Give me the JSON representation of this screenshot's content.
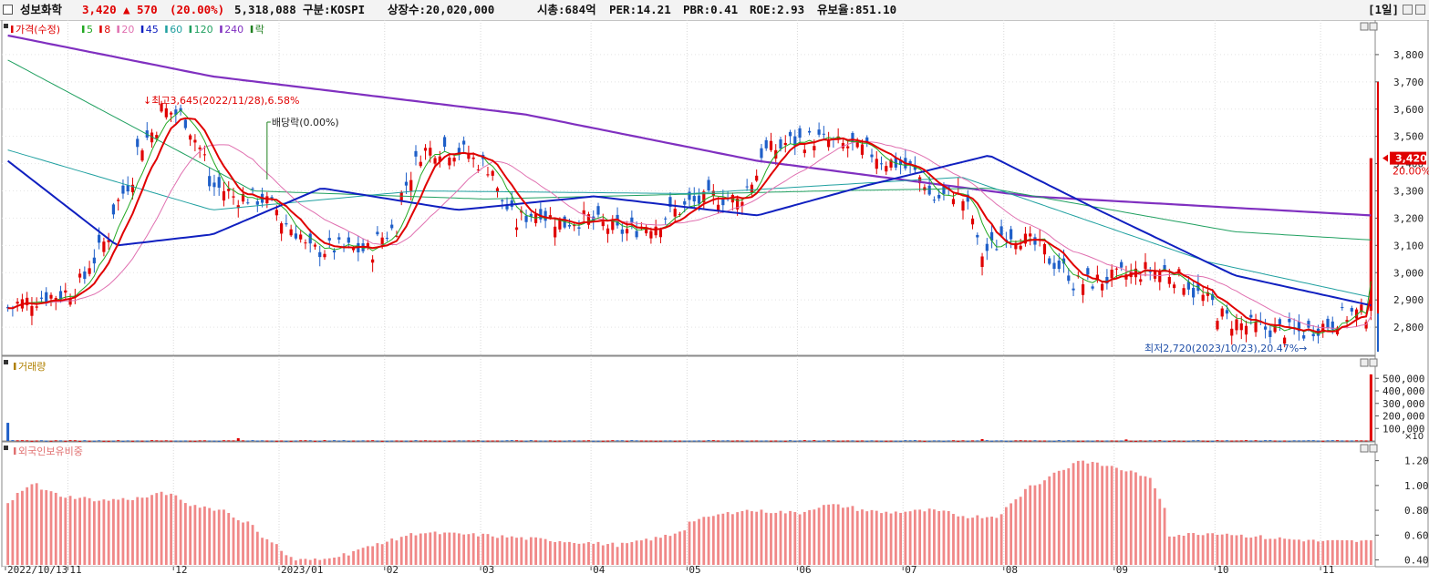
{
  "header": {
    "name": "성보화학",
    "price": "3,420",
    "change": "▲ 570",
    "change_pct": "(20.00%)",
    "volume": "5,318,088",
    "market": "구분:KOSPI",
    "shares": "상장수:20,020,000",
    "mcap": "시총:684억",
    "per": "PER:14.21",
    "pbr": "PBR:0.41",
    "roe": "ROE:2.93",
    "reserve": "유보율:851.10",
    "period": "[1일]",
    "up_color": "#e00000",
    "down_color": "#1f5fc8"
  },
  "chart_data": [
    {
      "type": "candlestick",
      "panel": "price",
      "legend": [
        {
          "label": "가격(수정)",
          "color": "#e00000"
        },
        {
          "label": "5",
          "color": "#22a822"
        },
        {
          "label": "8",
          "color": "#e00000"
        },
        {
          "label": "20",
          "color": "#e070b0"
        },
        {
          "label": "45",
          "color": "#1020c0"
        },
        {
          "label": "60",
          "color": "#20a0a0"
        },
        {
          "label": "120",
          "color": "#20a060"
        },
        {
          "label": "240",
          "color": "#8030c0"
        },
        {
          "label": "락",
          "color": "#208020"
        }
      ],
      "ylim": [
        2700,
        3900
      ],
      "yticks": [
        "3,800",
        "3,700",
        "3,600",
        "3,500",
        "3,400",
        "3,300",
        "3,200",
        "3,100",
        "3,000",
        "2,900",
        "2,800"
      ],
      "xticks": [
        "2022/10/13",
        "11",
        "12",
        "2023/01",
        "02",
        "03",
        "04",
        "05",
        "06",
        "07",
        "08",
        "09",
        "10",
        "11"
      ],
      "annotations": {
        "high": "최고3,645(2022/11/28),6.58%",
        "dividend": "배당락(0.00%)",
        "low": "최저2,720(2023/10/23),20.47%",
        "current_price": "3,420",
        "current_pct": "20.00%"
      },
      "anchors": [
        [
          "2022-10-13",
          2870
        ],
        [
          "2022-10-20",
          2900
        ],
        [
          "2022-11-01",
          2930
        ],
        [
          "2022-11-08",
          3050
        ],
        [
          "2022-11-14",
          3230
        ],
        [
          "2022-11-21",
          3450
        ],
        [
          "2022-11-28",
          3600
        ],
        [
          "2022-12-05",
          3560
        ],
        [
          "2022-12-12",
          3320
        ],
        [
          "2022-12-19",
          3280
        ],
        [
          "2022-12-27",
          3270
        ],
        [
          "2023-01-03",
          3180
        ],
        [
          "2023-01-10",
          3080
        ],
        [
          "2023-01-17",
          3090
        ],
        [
          "2023-01-27",
          3080
        ],
        [
          "2023-02-03",
          3170
        ],
        [
          "2023-02-10",
          3440
        ],
        [
          "2023-02-17",
          3460
        ],
        [
          "2023-02-24",
          3440
        ],
        [
          "2023-03-03",
          3380
        ],
        [
          "2023-03-10",
          3180
        ],
        [
          "2023-03-17",
          3230
        ],
        [
          "2023-03-24",
          3180
        ],
        [
          "2023-03-31",
          3200
        ],
        [
          "2023-04-10",
          3150
        ],
        [
          "2023-04-20",
          3180
        ],
        [
          "2023-04-28",
          3240
        ],
        [
          "2023-05-08",
          3280
        ],
        [
          "2023-05-15",
          3260
        ],
        [
          "2023-05-22",
          3440
        ],
        [
          "2023-05-30",
          3480
        ],
        [
          "2023-06-06",
          3490
        ],
        [
          "2023-06-13",
          3470
        ],
        [
          "2023-06-20",
          3450
        ],
        [
          "2023-06-27",
          3410
        ],
        [
          "2023-07-04",
          3380
        ],
        [
          "2023-07-11",
          3270
        ],
        [
          "2023-07-18",
          3300
        ],
        [
          "2023-07-25",
          3070
        ],
        [
          "2023-08-01",
          3150
        ],
        [
          "2023-08-08",
          3110
        ],
        [
          "2023-08-14",
          3050
        ],
        [
          "2023-08-21",
          2960
        ],
        [
          "2023-08-28",
          2970
        ],
        [
          "2023-09-04",
          2990
        ],
        [
          "2023-09-11",
          3010
        ],
        [
          "2023-09-18",
          3000
        ],
        [
          "2023-09-25",
          2930
        ],
        [
          "2023-10-05",
          2820
        ],
        [
          "2023-10-12",
          2800
        ],
        [
          "2023-10-19",
          2790
        ],
        [
          "2023-10-26",
          2780
        ],
        [
          "2023-11-02",
          2810
        ],
        [
          "2023-11-09",
          2850
        ],
        [
          "2023-11-14",
          2850
        ],
        [
          "2023-11-15",
          3420
        ]
      ],
      "ma240": [
        [
          3870,
          0
        ],
        [
          3720,
          0.15
        ],
        [
          3580,
          0.38
        ],
        [
          3410,
          0.55
        ],
        [
          3280,
          0.75
        ],
        [
          3210,
          1
        ]
      ],
      "ma120": [
        [
          3780,
          0
        ],
        [
          3300,
          0.18
        ],
        [
          3270,
          0.35
        ],
        [
          3300,
          0.6
        ],
        [
          3310,
          0.72
        ],
        [
          3150,
          0.9
        ],
        [
          3120,
          1
        ]
      ],
      "ma60": [
        [
          3450,
          0
        ],
        [
          3230,
          0.15
        ],
        [
          3300,
          0.3
        ],
        [
          3290,
          0.5
        ],
        [
          3350,
          0.7
        ],
        [
          3040,
          0.88
        ],
        [
          2910,
          1
        ]
      ],
      "ma45": [
        [
          3410,
          0
        ],
        [
          3100,
          0.08
        ],
        [
          3140,
          0.15
        ],
        [
          3310,
          0.23
        ],
        [
          3230,
          0.33
        ],
        [
          3280,
          0.43
        ],
        [
          3210,
          0.55
        ],
        [
          3320,
          0.63
        ],
        [
          3430,
          0.72
        ],
        [
          3230,
          0.8
        ],
        [
          2990,
          0.9
        ],
        [
          2880,
          1
        ]
      ]
    },
    {
      "type": "bar",
      "panel": "volume",
      "legend": [
        {
          "label": "거래량",
          "color": "#b08000"
        }
      ],
      "ylim": [
        0,
        560000
      ],
      "yticks": [
        "500,000",
        "400,000",
        "300,000",
        "200,000",
        "100,000"
      ],
      "unit": "×10",
      "spikes": [
        [
          "2022-10-13",
          145000
        ],
        [
          "2022-12-20",
          22000
        ],
        [
          "2023-07-25",
          15000
        ],
        [
          "2023-09-05",
          12000
        ],
        [
          "2023-11-15",
          531800
        ]
      ]
    },
    {
      "type": "bar",
      "panel": "foreign",
      "legend": [
        {
          "label": "외국인보유비중",
          "color": "#e07070"
        }
      ],
      "ylim": [
        0.36,
        1.3
      ],
      "yticks": [
        "1.20",
        "1.00",
        "0.80",
        "0.60",
        "0.40"
      ],
      "anchors": [
        [
          "2022-10-13",
          0.85
        ],
        [
          "2022-10-20",
          1.02
        ],
        [
          "2022-10-28",
          0.92
        ],
        [
          "2022-11-10",
          0.88
        ],
        [
          "2022-11-22",
          0.9
        ],
        [
          "2022-11-28",
          0.95
        ],
        [
          "2022-12-05",
          0.85
        ],
        [
          "2022-12-15",
          0.8
        ],
        [
          "2022-12-22",
          0.7
        ],
        [
          "2022-12-29",
          0.55
        ],
        [
          "2023-01-05",
          0.4
        ],
        [
          "2023-01-12",
          0.4
        ],
        [
          "2023-01-20",
          0.45
        ],
        [
          "2023-02-01",
          0.55
        ],
        [
          "2023-02-10",
          0.62
        ],
        [
          "2023-03-01",
          0.6
        ],
        [
          "2023-03-20",
          0.56
        ],
        [
          "2023-04-10",
          0.52
        ],
        [
          "2023-04-25",
          0.6
        ],
        [
          "2023-05-02",
          0.72
        ],
        [
          "2023-05-15",
          0.8
        ],
        [
          "2023-06-01",
          0.78
        ],
        [
          "2023-06-10",
          0.85
        ],
        [
          "2023-06-25",
          0.78
        ],
        [
          "2023-07-10",
          0.8
        ],
        [
          "2023-07-20",
          0.75
        ],
        [
          "2023-07-30",
          0.75
        ],
        [
          "2023-08-05",
          0.95
        ],
        [
          "2023-08-15",
          1.1
        ],
        [
          "2023-08-22",
          1.2
        ],
        [
          "2023-08-28",
          1.17
        ],
        [
          "2023-09-05",
          1.12
        ],
        [
          "2023-09-12",
          1.05
        ],
        [
          "2023-09-18",
          0.6
        ],
        [
          "2023-10-01",
          0.62
        ],
        [
          "2023-10-15",
          0.58
        ],
        [
          "2023-11-01",
          0.55
        ],
        [
          "2023-11-15",
          0.55
        ]
      ]
    }
  ]
}
